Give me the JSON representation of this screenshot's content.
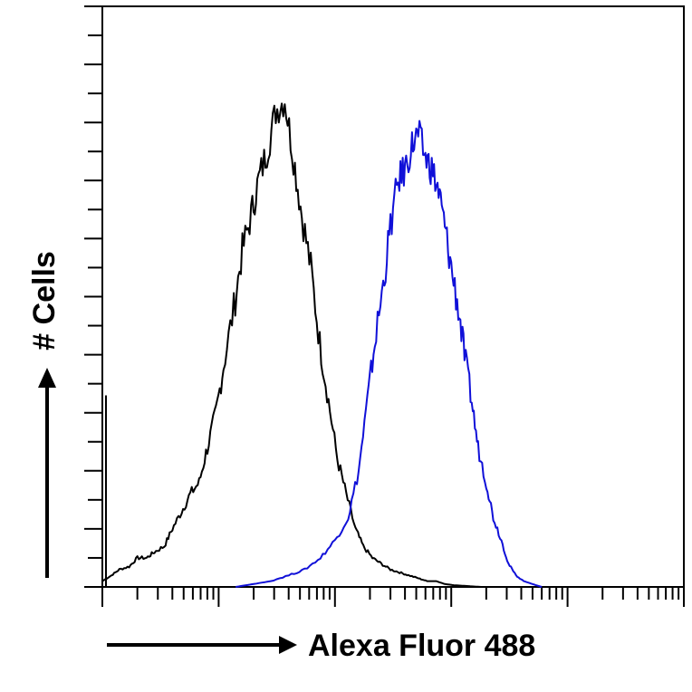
{
  "chart_data": {
    "type": "line",
    "title": "",
    "xlabel": "Alexa Fluor 488",
    "ylabel": "# Cells",
    "x_scale": "log",
    "xlim": [
      1,
      100000
    ],
    "ylim": [
      0,
      100
    ],
    "grid": false,
    "legend": "none",
    "series": [
      {
        "color": "#000000",
        "x": [
          1,
          1.2,
          1.4,
          1.7,
          2,
          2.4,
          2.8,
          3.4,
          4,
          4.8,
          5.7,
          6.8,
          8,
          9.5,
          11,
          13.5,
          16,
          19,
          22,
          26,
          31,
          37,
          44,
          52,
          62,
          74,
          88,
          105,
          125,
          150,
          175,
          210,
          250,
          300,
          360,
          430,
          520,
          620,
          740,
          880,
          1050,
          1250,
          1500,
          1800
        ],
        "y": [
          1,
          2,
          3,
          3.5,
          5,
          5,
          6,
          7,
          10,
          13,
          16,
          18,
          24,
          30,
          38,
          48,
          58,
          64,
          70,
          75,
          82,
          84,
          74,
          64,
          55,
          42,
          32,
          22,
          16,
          10,
          7,
          5,
          4,
          3,
          2.5,
          2,
          1.5,
          1,
          1,
          0.5,
          0.3,
          0.2,
          0.1,
          0
        ]
      },
      {
        "color": "#1010d8",
        "x": [
          14,
          20,
          28,
          40,
          55,
          75,
          100,
          130,
          160,
          190,
          220,
          260,
          300,
          350,
          400,
          460,
          520,
          600,
          680,
          780,
          880,
          1000,
          1150,
          1300,
          1500,
          1700,
          2000,
          2300,
          2700,
          3100,
          3600,
          4200,
          5000,
          6000
        ],
        "y": [
          0,
          0.5,
          1,
          2,
          3,
          5,
          8,
          12,
          20,
          32,
          42,
          52,
          62,
          70,
          72,
          76,
          78,
          74,
          72,
          68,
          62,
          55,
          48,
          40,
          32,
          24,
          18,
          12,
          8,
          4,
          2,
          1,
          0.5,
          0
        ]
      }
    ]
  }
}
